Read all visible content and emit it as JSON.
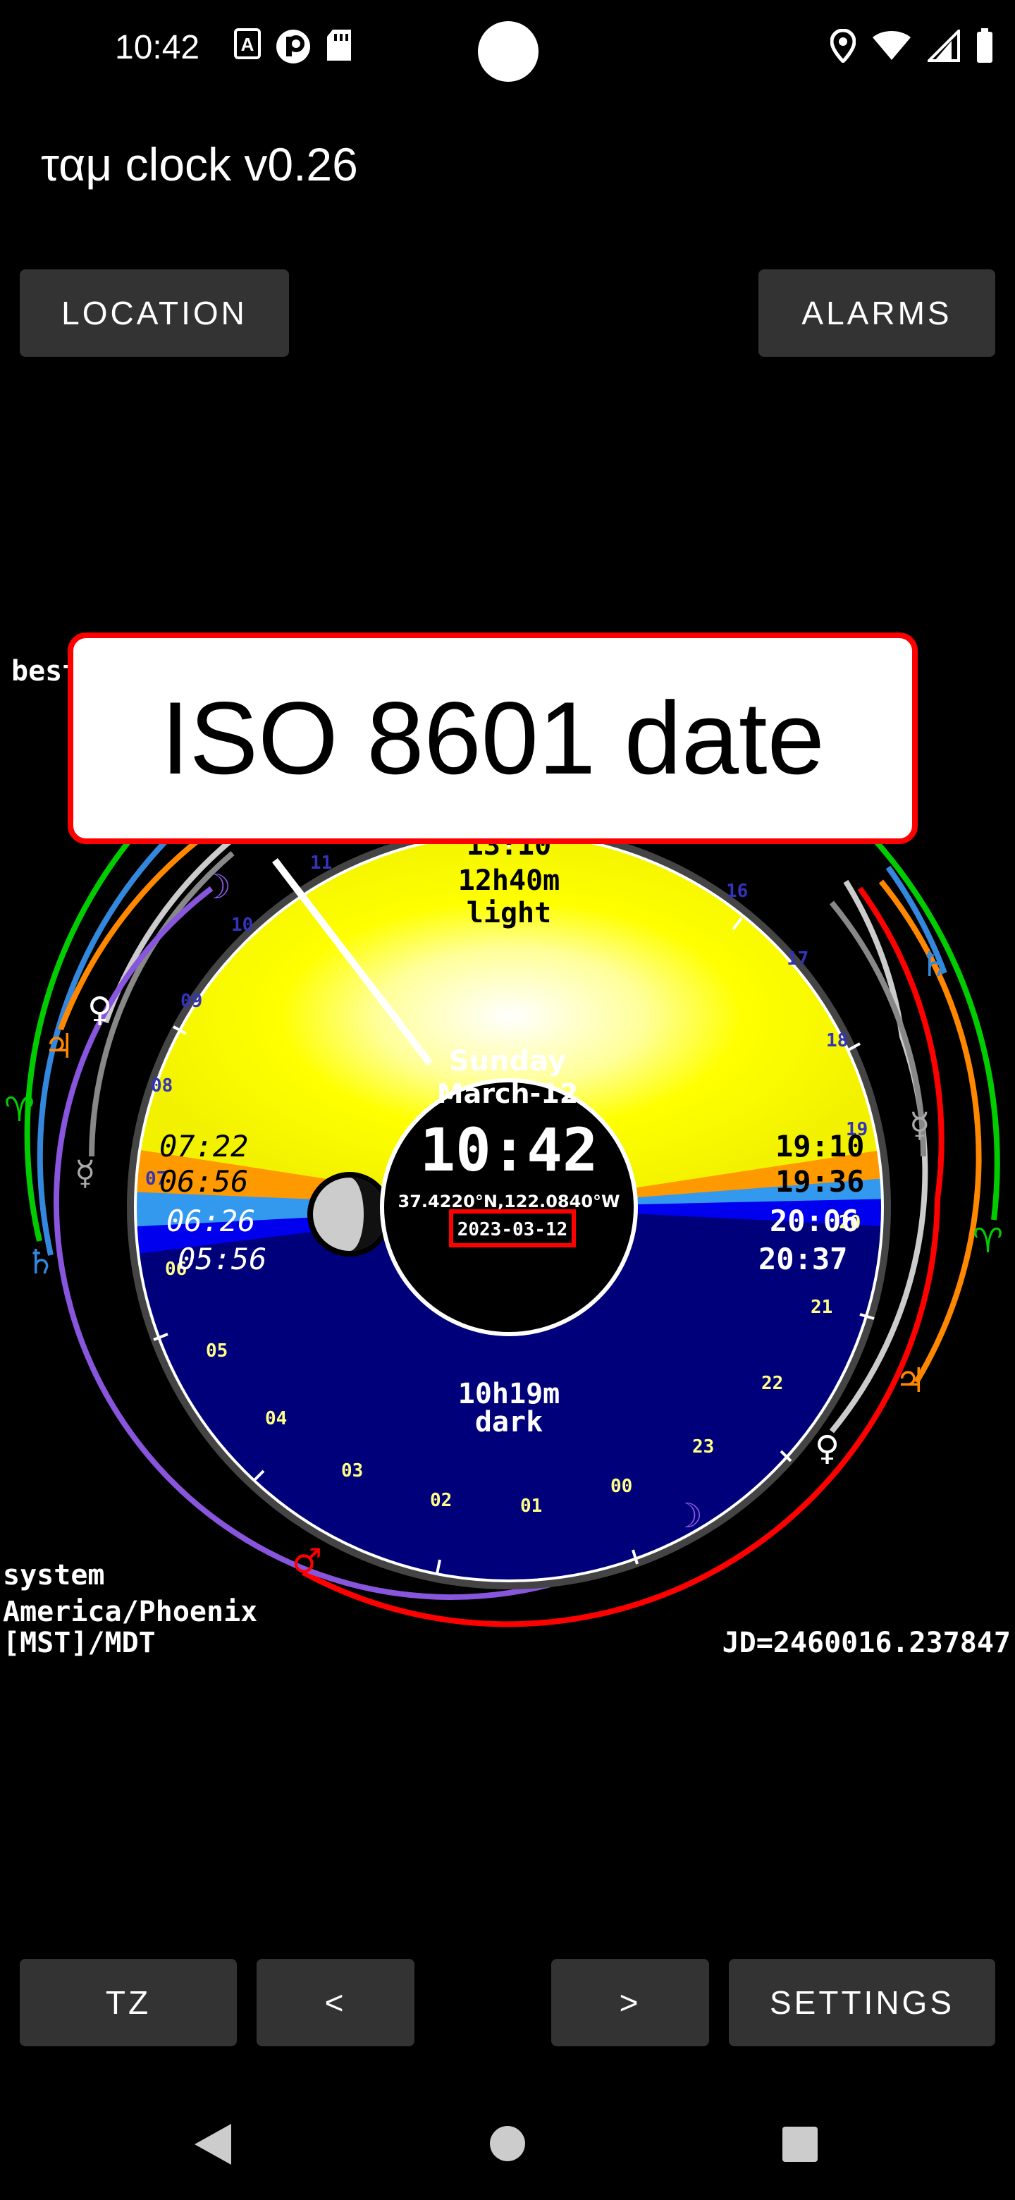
{
  "status_bar": {
    "time": "10:42",
    "left_icons": [
      "font-a-icon",
      "p-badge-icon",
      "sd-card-icon"
    ],
    "right_icons": [
      "location-icon",
      "wifi-icon",
      "signal-icon",
      "battery-icon"
    ]
  },
  "app": {
    "title": "ταμ clock v0.26"
  },
  "buttons": {
    "location": "LOCATION",
    "alarms": "ALARMS",
    "tz": "TZ",
    "prev": "<",
    "next": ">",
    "settings": "SETTINGS"
  },
  "clock": {
    "day_name": "Sunday",
    "date_text": "March-12",
    "time": "10:42",
    "coordinates": "37.4220°N,122.0840°W",
    "iso_date": "2023-03-12",
    "light_time_partial": "13:10",
    "light_duration": "12h40m",
    "light_label": "light",
    "dark_duration": "10h19m",
    "dark_label": "dark",
    "morning_times": [
      "07:22",
      "06:56",
      "06:26",
      "05:56"
    ],
    "evening_times": [
      "19:10",
      "19:36",
      "20:06",
      "20:37"
    ],
    "hour_labels": [
      "11",
      "10",
      "09",
      "08",
      "07",
      "06",
      "05",
      "04",
      "03",
      "02",
      "01",
      "00",
      "23",
      "22",
      "21",
      "20",
      "19",
      "18",
      "17",
      "16"
    ],
    "planet_symbols": [
      "☽",
      "♀",
      "♃",
      "♃",
      "♄",
      "☿",
      "♄",
      "♄",
      "☿",
      "♈",
      "♃",
      "♀",
      "☽",
      "♂",
      "♈"
    ]
  },
  "side": {
    "partial_left": "best",
    "tz_source": "system",
    "tz_name": "America/Phoenix",
    "tz_abbr": "[MST]/MDT",
    "julian_date": "JD=2460016.237847"
  },
  "callout": {
    "text": "ISO 8601 date"
  }
}
